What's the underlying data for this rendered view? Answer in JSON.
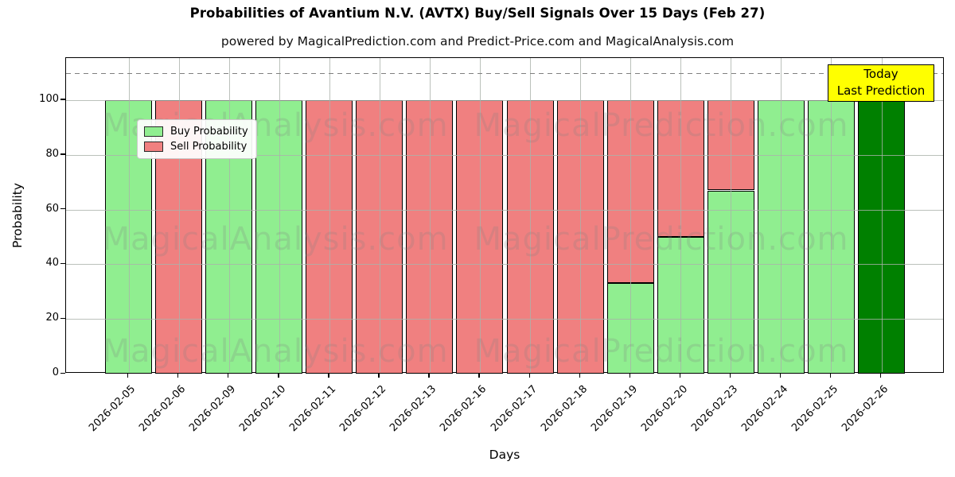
{
  "chart_data": {
    "type": "bar",
    "subtype": "stacked",
    "title": "Probabilities of Avantium N.V. (AVTX) Buy/Sell Signals Over 15 Days (Feb 27)",
    "subtitle": "powered by MagicalPrediction.com and Predict-Price.com and MagicalAnalysis.com",
    "xlabel": "Days",
    "ylabel": "Probability",
    "ylim": [
      0,
      115
    ],
    "yticks": [
      0,
      20,
      40,
      60,
      80,
      100
    ],
    "grid": true,
    "dashed_threshold_y": 110,
    "legend_position": "upper-left",
    "categories": [
      "2026-02-05",
      "2026-02-06",
      "2026-02-09",
      "2026-02-10",
      "2026-02-11",
      "2026-02-12",
      "2026-02-13",
      "2026-02-16",
      "2026-02-17",
      "2026-02-18",
      "2026-02-19",
      "2026-02-20",
      "2026-02-23",
      "2026-02-24",
      "2026-02-25",
      "2026-02-26"
    ],
    "series": [
      {
        "name": "Buy Probability",
        "color": "#90EE90",
        "values": [
          100,
          0,
          100,
          100,
          0,
          0,
          0,
          0,
          0,
          0,
          33,
          50,
          67,
          100,
          100,
          100
        ]
      },
      {
        "name": "Sell Probability",
        "color": "#F08080",
        "values": [
          0,
          100,
          0,
          0,
          100,
          100,
          100,
          100,
          100,
          100,
          67,
          50,
          33,
          0,
          0,
          0
        ]
      }
    ],
    "today_bar": {
      "category": "2026-02-26",
      "index": 15,
      "color": "#008000"
    },
    "colors": {
      "bar_edge": "#000000",
      "grid": "#b0b0b0",
      "dashed_line": "#7f7f7f",
      "axis": "#000000",
      "background": "#ffffff"
    }
  },
  "annotation": {
    "line1": "Today",
    "line2": "Last Prediction",
    "bg_color": "#FFFF00",
    "border_color": "#000000"
  },
  "watermarks": {
    "left_text": "MagicalAnalysis.com",
    "right_text": "MagicalPrediction.com"
  }
}
